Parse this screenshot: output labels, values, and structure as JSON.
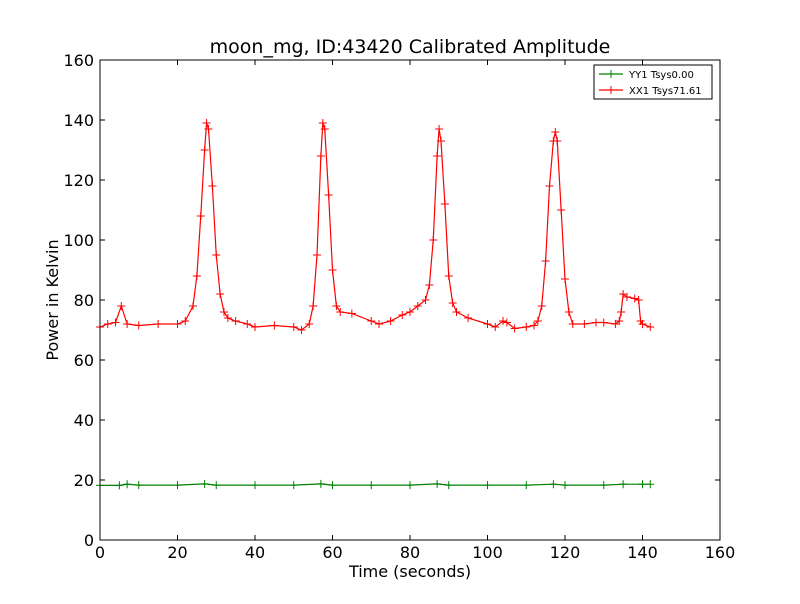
{
  "chart_data": {
    "type": "line",
    "title": "moon_mg, ID:43420 Calibrated Amplitude",
    "xlabel": "Time (seconds)",
    "ylabel": "Power in Kelvin",
    "xlim": [
      0,
      160
    ],
    "ylim": [
      0,
      160
    ],
    "xticks": [
      0,
      20,
      40,
      60,
      80,
      100,
      120,
      140,
      160
    ],
    "yticks": [
      0,
      20,
      40,
      60,
      80,
      100,
      120,
      140,
      160
    ],
    "grid": false,
    "legend_position": "top-right",
    "series": [
      {
        "name": "YY1 Tsys0.00",
        "color": "#008000",
        "marker": "plus",
        "x": [
          0,
          5,
          7,
          10,
          20,
          27,
          30,
          40,
          50,
          57,
          60,
          70,
          80,
          87,
          90,
          100,
          110,
          117,
          120,
          130,
          135,
          140,
          142
        ],
        "y": [
          18.2,
          18.2,
          18.6,
          18.3,
          18.3,
          18.7,
          18.3,
          18.3,
          18.3,
          18.7,
          18.3,
          18.3,
          18.3,
          18.7,
          18.3,
          18.3,
          18.3,
          18.6,
          18.3,
          18.3,
          18.6,
          18.6,
          18.6
        ]
      },
      {
        "name": "XX1 Tsys71.61",
        "color": "#ff0000",
        "marker": "plus",
        "x": [
          0,
          2,
          4,
          5.5,
          7,
          10,
          15,
          20,
          22,
          24,
          25,
          26,
          27,
          27.5,
          28,
          29,
          30,
          31,
          32,
          33,
          35,
          38,
          40,
          45,
          50,
          52,
          54,
          55,
          56,
          57,
          57.5,
          58,
          59,
          60,
          61,
          62,
          65,
          70,
          72,
          75,
          78,
          80,
          82,
          84,
          85,
          86,
          87,
          87.5,
          88,
          89,
          90,
          91,
          92,
          95,
          100,
          102,
          104,
          105,
          107,
          110,
          112,
          113,
          114,
          115,
          116,
          117,
          117.5,
          118,
          119,
          120,
          121,
          122,
          125,
          128,
          130,
          133,
          134,
          134.5,
          135,
          136,
          138,
          139,
          139.5,
          140,
          142
        ],
        "y": [
          71,
          72,
          72.5,
          78,
          72,
          71.5,
          72,
          72,
          73,
          78,
          88,
          108,
          130,
          139,
          137,
          118,
          95,
          82,
          76,
          74,
          73,
          72,
          71,
          71.5,
          71,
          70,
          72,
          78,
          95,
          128,
          139,
          137,
          115,
          90,
          78,
          76,
          75.5,
          73,
          72,
          73,
          75,
          76,
          78,
          80,
          85,
          100,
          128,
          137,
          133,
          112,
          88,
          79,
          76,
          74,
          72,
          71,
          73,
          72.5,
          70.5,
          71,
          71.5,
          73,
          78,
          93,
          118,
          133,
          136,
          133,
          110,
          87,
          76,
          72,
          72,
          72.5,
          72.5,
          72,
          73,
          76,
          82,
          81,
          80.5,
          80,
          73,
          72,
          71
        ]
      }
    ]
  }
}
